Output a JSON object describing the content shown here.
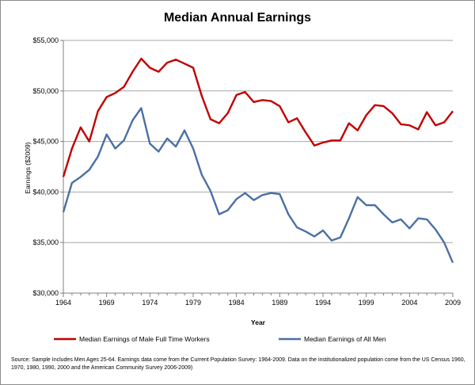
{
  "chart_data": {
    "type": "line",
    "title": "Median Annual Earnings",
    "xlabel": "Year",
    "ylabel": "Earnings ($2009)",
    "xlim": [
      1964,
      2009
    ],
    "ylim": [
      30000,
      55000
    ],
    "x_ticks": [
      1964,
      1969,
      1974,
      1979,
      1984,
      1989,
      1994,
      1999,
      2004,
      2009
    ],
    "y_ticks": [
      30000,
      35000,
      40000,
      45000,
      50000,
      55000
    ],
    "y_tick_labels": [
      "$30,000",
      "$35,000",
      "$40,000",
      "$45,000",
      "$50,000",
      "$55,000"
    ],
    "grid": "horizontal",
    "legend_position": "bottom",
    "x": [
      1964,
      1965,
      1966,
      1967,
      1968,
      1969,
      1970,
      1971,
      1972,
      1973,
      1974,
      1975,
      1976,
      1977,
      1978,
      1979,
      1980,
      1981,
      1982,
      1983,
      1984,
      1985,
      1986,
      1987,
      1988,
      1989,
      1990,
      1991,
      1992,
      1993,
      1994,
      1995,
      1996,
      1997,
      1998,
      1999,
      2000,
      2001,
      2002,
      2003,
      2004,
      2005,
      2006,
      2007,
      2008,
      2009
    ],
    "series": [
      {
        "name": "Median Earnings of Male Full Time Workers",
        "color": "#c00000",
        "values": [
          41500,
          44300,
          46400,
          45000,
          48000,
          49400,
          49800,
          50400,
          51900,
          53200,
          52300,
          51900,
          52800,
          53100,
          52700,
          52300,
          49500,
          47200,
          46800,
          47800,
          49600,
          49900,
          48900,
          49100,
          49000,
          48500,
          46900,
          47300,
          45900,
          44600,
          44900,
          45100,
          45100,
          46800,
          46100,
          47600,
          48600,
          48500,
          47800,
          46700,
          46600,
          46200,
          47900,
          46600,
          46900,
          48000
        ]
      },
      {
        "name": "Median Earnings of All Men",
        "color": "#4a6fa5",
        "values": [
          38000,
          40900,
          41500,
          42200,
          43500,
          45700,
          44300,
          45100,
          47100,
          48300,
          44800,
          44000,
          45300,
          44500,
          46100,
          44300,
          41700,
          40100,
          37800,
          38200,
          39300,
          39900,
          39200,
          39700,
          39900,
          39800,
          37800,
          36500,
          36100,
          35600,
          36200,
          35200,
          35500,
          37400,
          39500,
          38700,
          38700,
          37800,
          37000,
          37300,
          36400,
          37400,
          37300,
          36300,
          35000,
          33000
        ]
      }
    ]
  },
  "source_note": "Source: Sample Includes Men Ages 25-64.  Earnings data come from the Current Population Survey: 1964-2009.  Data on the institutionalized population come from the US Census 1960, 1970, 1980, 1990, 2000 and the American Community Survey 2006-2009)"
}
